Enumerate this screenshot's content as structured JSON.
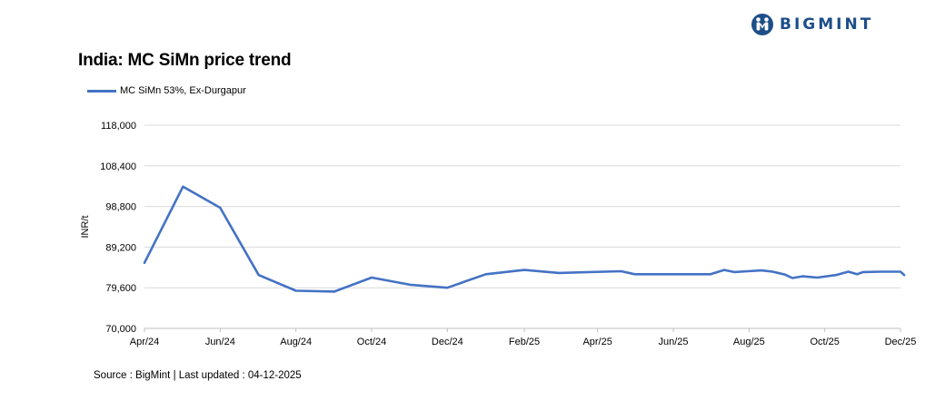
{
  "brand": {
    "name": "BIGMINT",
    "color": "#1d4e89"
  },
  "title": "India: MC SiMn price trend",
  "source": "Source : BigMint | Last updated : 04-12-2025",
  "chart_data": {
    "type": "line",
    "title": "India: MC SiMn price trend",
    "xlabel": "",
    "ylabel": "INR/t",
    "ylim": [
      70000,
      118000
    ],
    "yticks": [
      "118,000",
      "108,400",
      "98,800",
      "89,200",
      "79,600",
      "70,000"
    ],
    "ytick_values": [
      118000,
      108400,
      98800,
      89200,
      79600,
      70000
    ],
    "xticks": [
      "Apr/24",
      "Jun/24",
      "Aug/24",
      "Oct/24",
      "Dec/24",
      "Feb/25",
      "Apr/25",
      "Jun/25",
      "Aug/25",
      "Oct/25",
      "Dec/25"
    ],
    "xtick_dates": [
      "2024-04-01",
      "2024-06-01",
      "2024-08-01",
      "2024-10-01",
      "2024-12-01",
      "2025-02-01",
      "2025-04-01",
      "2025-06-01",
      "2025-08-01",
      "2025-10-01",
      "2025-12-01"
    ],
    "grid": "horizontal",
    "legend_position": "top-left",
    "series": [
      {
        "name": "MC SiMn 53%, Ex-Durgapur",
        "color": "#4472c4",
        "points": [
          [
            "2024-04-01",
            85500
          ],
          [
            "2024-05-02",
            103500
          ],
          [
            "2024-06-01",
            98500
          ],
          [
            "2024-07-02",
            82600
          ],
          [
            "2024-08-01",
            78900
          ],
          [
            "2024-09-01",
            78700
          ],
          [
            "2024-10-01",
            82000
          ],
          [
            "2024-11-01",
            80300
          ],
          [
            "2024-12-01",
            79600
          ],
          [
            "2025-01-01",
            82800
          ],
          [
            "2025-02-01",
            83800
          ],
          [
            "2025-03-01",
            83100
          ],
          [
            "2025-04-20",
            83500
          ],
          [
            "2025-05-01",
            82800
          ],
          [
            "2025-06-01",
            82800
          ],
          [
            "2025-07-01",
            82800
          ],
          [
            "2025-07-12",
            83800
          ],
          [
            "2025-07-20",
            83300
          ],
          [
            "2025-07-31",
            83500
          ],
          [
            "2025-08-11",
            83700
          ],
          [
            "2025-08-20",
            83400
          ],
          [
            "2025-08-30",
            82700
          ],
          [
            "2025-09-05",
            81900
          ],
          [
            "2025-09-13",
            82300
          ],
          [
            "2025-09-25",
            82000
          ],
          [
            "2025-10-10",
            82600
          ],
          [
            "2025-10-20",
            83400
          ],
          [
            "2025-10-27",
            82800
          ],
          [
            "2025-11-01",
            83300
          ],
          [
            "2025-11-15",
            83400
          ],
          [
            "2025-12-01",
            83400
          ],
          [
            "2025-12-04",
            82600
          ]
        ]
      }
    ]
  }
}
